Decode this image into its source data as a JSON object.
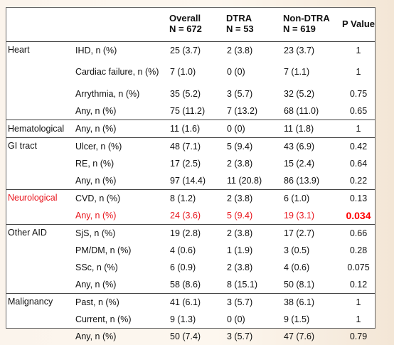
{
  "header": {
    "overall_line1": "Overall",
    "overall_line2": "N = 672",
    "dtra_line1": "DTRA",
    "dtra_line2": "N = 53",
    "nondtra_line1": "Non-DTRA",
    "nondtra_line2": "N = 619",
    "pvalue": "P Value"
  },
  "rows": {
    "heart_ihd": {
      "cat": "Heart",
      "item": "IHD, n (%)",
      "overall": "25 (3.7)",
      "dtra": "2 (3.8)",
      "nondtra": "23 (3.7)",
      "p": "1"
    },
    "heart_cf": {
      "item": "Cardiac failure, n (%)",
      "overall": "7 (1.0)",
      "dtra": "0 (0)",
      "nondtra": "7 (1.1)",
      "p": "1"
    },
    "heart_arr": {
      "item": "Arrythmia, n (%)",
      "overall": "35 (5.2)",
      "dtra": "3 (5.7)",
      "nondtra": "32 (5.2)",
      "p": "0.75"
    },
    "heart_any": {
      "item": "Any, n (%)",
      "overall": "75 (11.2)",
      "dtra": "7 (13.2)",
      "nondtra": "68 (11.0)",
      "p": "0.65"
    },
    "hema_any": {
      "cat": "Hematological",
      "item": "Any, n (%)",
      "overall": "11 (1.6)",
      "dtra": "0 (0)",
      "nondtra": "11 (1.8)",
      "p": "1"
    },
    "gi_ulcer": {
      "cat": "GI tract",
      "item": "Ulcer, n (%)",
      "overall": "48 (7.1)",
      "dtra": "5 (9.4)",
      "nondtra": "43 (6.9)",
      "p": "0.42"
    },
    "gi_re": {
      "item": "RE, n (%)",
      "overall": "17 (2.5)",
      "dtra": "2 (3.8)",
      "nondtra": "15 (2.4)",
      "p": "0.64"
    },
    "gi_any": {
      "item": "Any, n (%)",
      "overall": "97 (14.4)",
      "dtra": "11 (20.8)",
      "nondtra": "86 (13.9)",
      "p": "0.22"
    },
    "neuro_cvd": {
      "cat": "Neurological",
      "item": "CVD, n (%)",
      "overall": "8 (1.2)",
      "dtra": "2 (3.8)",
      "nondtra": "6 (1.0)",
      "p": "0.13"
    },
    "neuro_any": {
      "item": "Any, n (%)",
      "overall": "24 (3.6)",
      "dtra": "5 (9.4)",
      "nondtra": "19 (3.1)",
      "p": "0.034"
    },
    "aid_sjs": {
      "cat": "Other AID",
      "item": "SjS, n (%)",
      "overall": "19 (2.8)",
      "dtra": "2 (3.8)",
      "nondtra": "17 (2.7)",
      "p": "0.66"
    },
    "aid_pmdm": {
      "item": "PM/DM, n (%)",
      "overall": "4 (0.6)",
      "dtra": "1 (1.9)",
      "nondtra": "3 (0.5)",
      "p": "0.28"
    },
    "aid_ssc": {
      "item": "SSc, n (%)",
      "overall": "6 (0.9)",
      "dtra": "2 (3.8)",
      "nondtra": "4 (0.6)",
      "p": "0.075"
    },
    "aid_any": {
      "item": "Any, n (%)",
      "overall": "58 (8.6)",
      "dtra": "8 (15.1)",
      "nondtra": "50 (8.1)",
      "p": "0.12"
    },
    "mal_past": {
      "cat": "Malignancy",
      "item": "Past, n (%)",
      "overall": "41 (6.1)",
      "dtra": "3 (5.7)",
      "nondtra": "38 (6.1)",
      "p": "1"
    },
    "mal_current": {
      "item": "Current, n (%)",
      "overall": "9 (1.3)",
      "dtra": "0 (0)",
      "nondtra": "9 (1.5)",
      "p": "1"
    },
    "mal_any": {
      "item": "Any, n (%)",
      "overall": "50 (7.4)",
      "dtra": "3 (5.7)",
      "nondtra": "47 (7.6)",
      "p": "0.79"
    }
  },
  "colors": {
    "highlight_text": "#e8141c",
    "significant_p": "#ff0000",
    "rule": "#444444"
  }
}
